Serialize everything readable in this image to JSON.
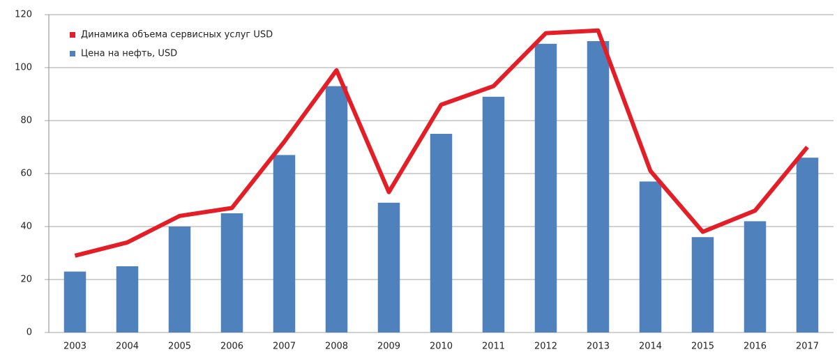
{
  "chart_data": {
    "type": "bar_line",
    "categories": [
      "2003",
      "2004",
      "2005",
      "2006",
      "2007",
      "2008",
      "2009",
      "2010",
      "2011",
      "2012",
      "2013",
      "2014",
      "2015",
      "2016",
      "2017"
    ],
    "series": [
      {
        "name": "Динамика объема сервисных услуг USD",
        "type": "line",
        "color": "#e41e26",
        "values": [
          29,
          34,
          44,
          47,
          72,
          99,
          53,
          86,
          93,
          113,
          114,
          61,
          38,
          46,
          70
        ]
      },
      {
        "name": "Цена на нефть, USD",
        "type": "bar",
        "color": "#4f81bd",
        "values": [
          23,
          25,
          40,
          45,
          67,
          93,
          49,
          75,
          89,
          109,
          110,
          57,
          36,
          42,
          66
        ]
      }
    ],
    "ylim": [
      0,
      120
    ],
    "yticks": [
      0,
      20,
      40,
      60,
      80,
      100,
      120
    ],
    "grid": true
  }
}
